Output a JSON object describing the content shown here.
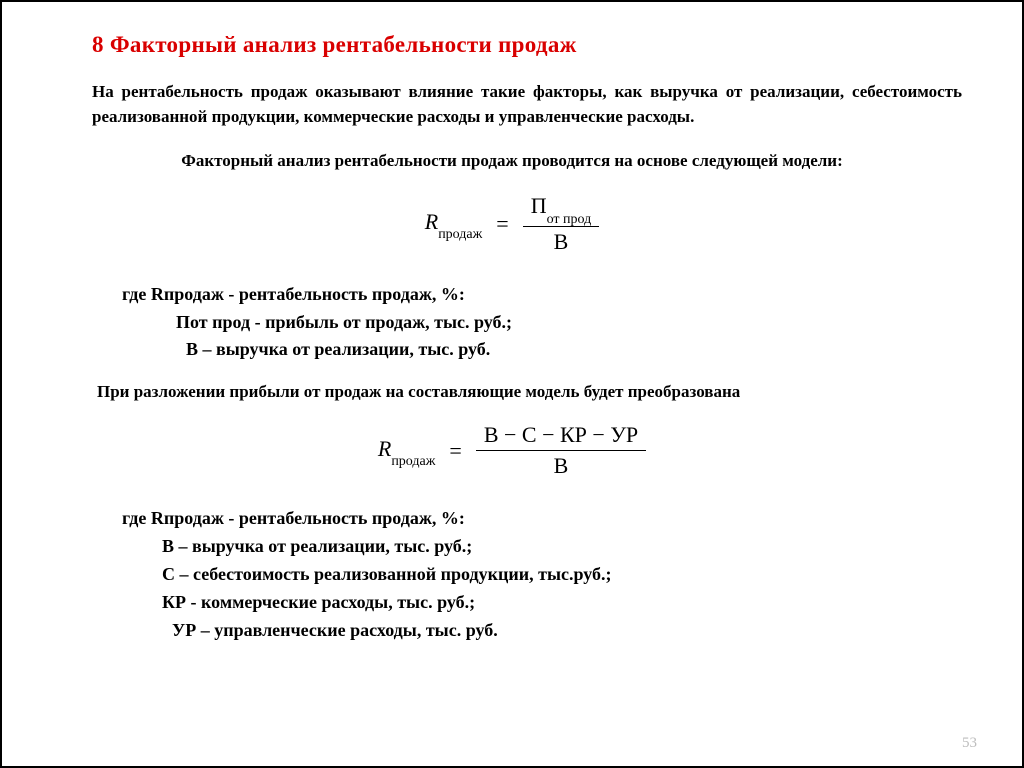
{
  "colors": {
    "title": "#d90000",
    "text": "#000000",
    "pagenum": "#bdbdbd",
    "background": "#ffffff",
    "border": "#000000"
  },
  "title": "8 Факторный анализ рентабельности продаж",
  "intro": "На рентабельность продаж оказывают влияние такие факторы, как выручка от реализации, себестоимость реализованной продукции, коммерческие расходы и управленческие расходы.",
  "model_intro": "Факторный анализ рентабельности продаж проводится на основе следующей модели:",
  "formula1": {
    "lhs": "R",
    "lhs_sub": "продаж",
    "num": "П",
    "num_sub": "от прод",
    "den": "В"
  },
  "defs1": {
    "l1": "где   Rпродаж -  рентабельность продаж, %:",
    "l2": "Пот прод  -  прибыль от продаж, тыс. руб.;",
    "l3": "В – выручка от реализации, тыс. руб."
  },
  "expand_note": "При разложении прибыли от продаж на составляющие модель будет преобразована",
  "formula2": {
    "lhs": "R",
    "lhs_sub": "продаж",
    "num": "В − С − КР  − УР",
    "den": "В"
  },
  "defs2": {
    "l1": "где   Rпродаж -  рентабельность продаж, %:",
    "l2": "В – выручка от реализации, тыс. руб.;",
    "l3": "С – себестоимость  реализованной продукции, тыс.руб.;",
    "l4": "КР -  коммерческие расходы, тыс. руб.;",
    "l5": "УР – управленческие расходы, тыс. руб."
  },
  "pagenum": "53"
}
